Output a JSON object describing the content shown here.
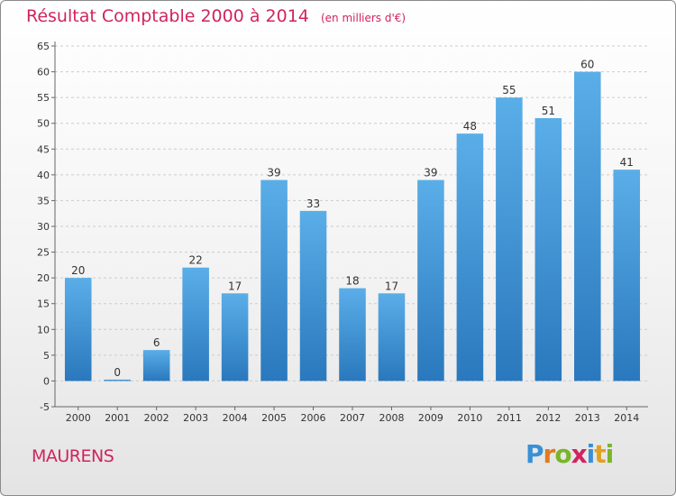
{
  "header": {
    "title": "Résultat Comptable 2000 à 2014",
    "subtitle": "(en milliers d'€)"
  },
  "footer": {
    "commune": "MAURENS",
    "logo_letters": [
      {
        "ch": "P",
        "color": "#3a8fd6"
      },
      {
        "ch": "r",
        "color": "#e07b1f"
      },
      {
        "ch": "o",
        "color": "#7ab52a"
      },
      {
        "ch": "x",
        "color": "#d0245e"
      },
      {
        "ch": "i",
        "color": "#3a8fd6"
      },
      {
        "ch": "t",
        "color": "#e0a21f"
      },
      {
        "ch": "i",
        "color": "#7ab52a"
      }
    ]
  },
  "colors": {
    "bar_top": "#5aaee8",
    "bar_bottom": "#2a78bd",
    "grid": "#cccccc",
    "title": "#d0245e"
  },
  "chart_data": {
    "type": "bar",
    "categories": [
      "2000",
      "2001",
      "2002",
      "2003",
      "2004",
      "2005",
      "2006",
      "2007",
      "2008",
      "2009",
      "2010",
      "2011",
      "2012",
      "2013",
      "2014"
    ],
    "values": [
      20,
      0,
      6,
      22,
      17,
      39,
      33,
      18,
      17,
      39,
      48,
      55,
      51,
      60,
      41
    ],
    "ylim": [
      -5,
      65
    ],
    "yticks": [
      -5,
      0,
      5,
      10,
      15,
      20,
      25,
      30,
      35,
      40,
      45,
      50,
      55,
      60,
      65
    ],
    "grid": true,
    "show_data_labels": true
  }
}
